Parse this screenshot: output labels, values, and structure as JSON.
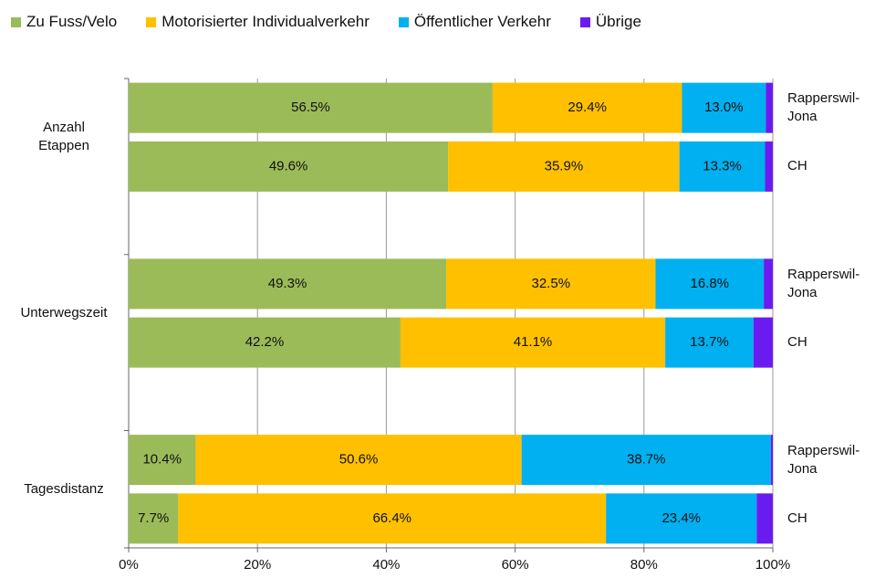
{
  "chart_data": {
    "type": "stacked_barh",
    "group_labels": [
      "Anzahl Etappen",
      "Unterwegszeit",
      "Tagesdistanz"
    ],
    "categories": [
      "Rapperswil-Jona",
      "CH",
      "Rapperswil-Jona",
      "CH",
      "Rapperswil-Jona",
      "CH"
    ],
    "series": [
      {
        "name": "Zu Fuss/Velo",
        "color": "#9bbb59",
        "values": [
          56.5,
          49.6,
          49.3,
          42.2,
          10.4,
          7.7
        ],
        "value_labels": [
          "56.5%",
          "49.6%",
          "49.3%",
          "42.2%",
          "10.4%",
          "7.7%"
        ]
      },
      {
        "name": "Motorisierter Individualverkehr",
        "color": "#ffc000",
        "values": [
          29.4,
          35.9,
          32.5,
          41.1,
          50.6,
          66.4
        ],
        "value_labels": [
          "29.4%",
          "35.9%",
          "32.5%",
          "41.1%",
          "50.6%",
          "66.4%"
        ]
      },
      {
        "name": "Öffentlicher Verkehr",
        "color": "#00b0f0",
        "values": [
          13.0,
          13.3,
          16.8,
          13.7,
          38.7,
          23.4
        ],
        "value_labels": [
          "13.0%",
          "13.3%",
          "16.8%",
          "13.7%",
          "38.7%",
          "23.4%"
        ]
      },
      {
        "name": "Übrige",
        "color": "#6a1bf0",
        "values": [
          1.1,
          1.2,
          1.4,
          3.0,
          0.3,
          2.5
        ]
      }
    ],
    "xlim": [
      0,
      100
    ],
    "xticks": [
      {
        "value": 0,
        "label": "0%"
      },
      {
        "value": 20,
        "label": "20%"
      },
      {
        "value": 40,
        "label": "40%"
      },
      {
        "value": 60,
        "label": "60%"
      },
      {
        "value": 80,
        "label": "80%"
      },
      {
        "value": 100,
        "label": "100%"
      }
    ],
    "grid": true
  }
}
